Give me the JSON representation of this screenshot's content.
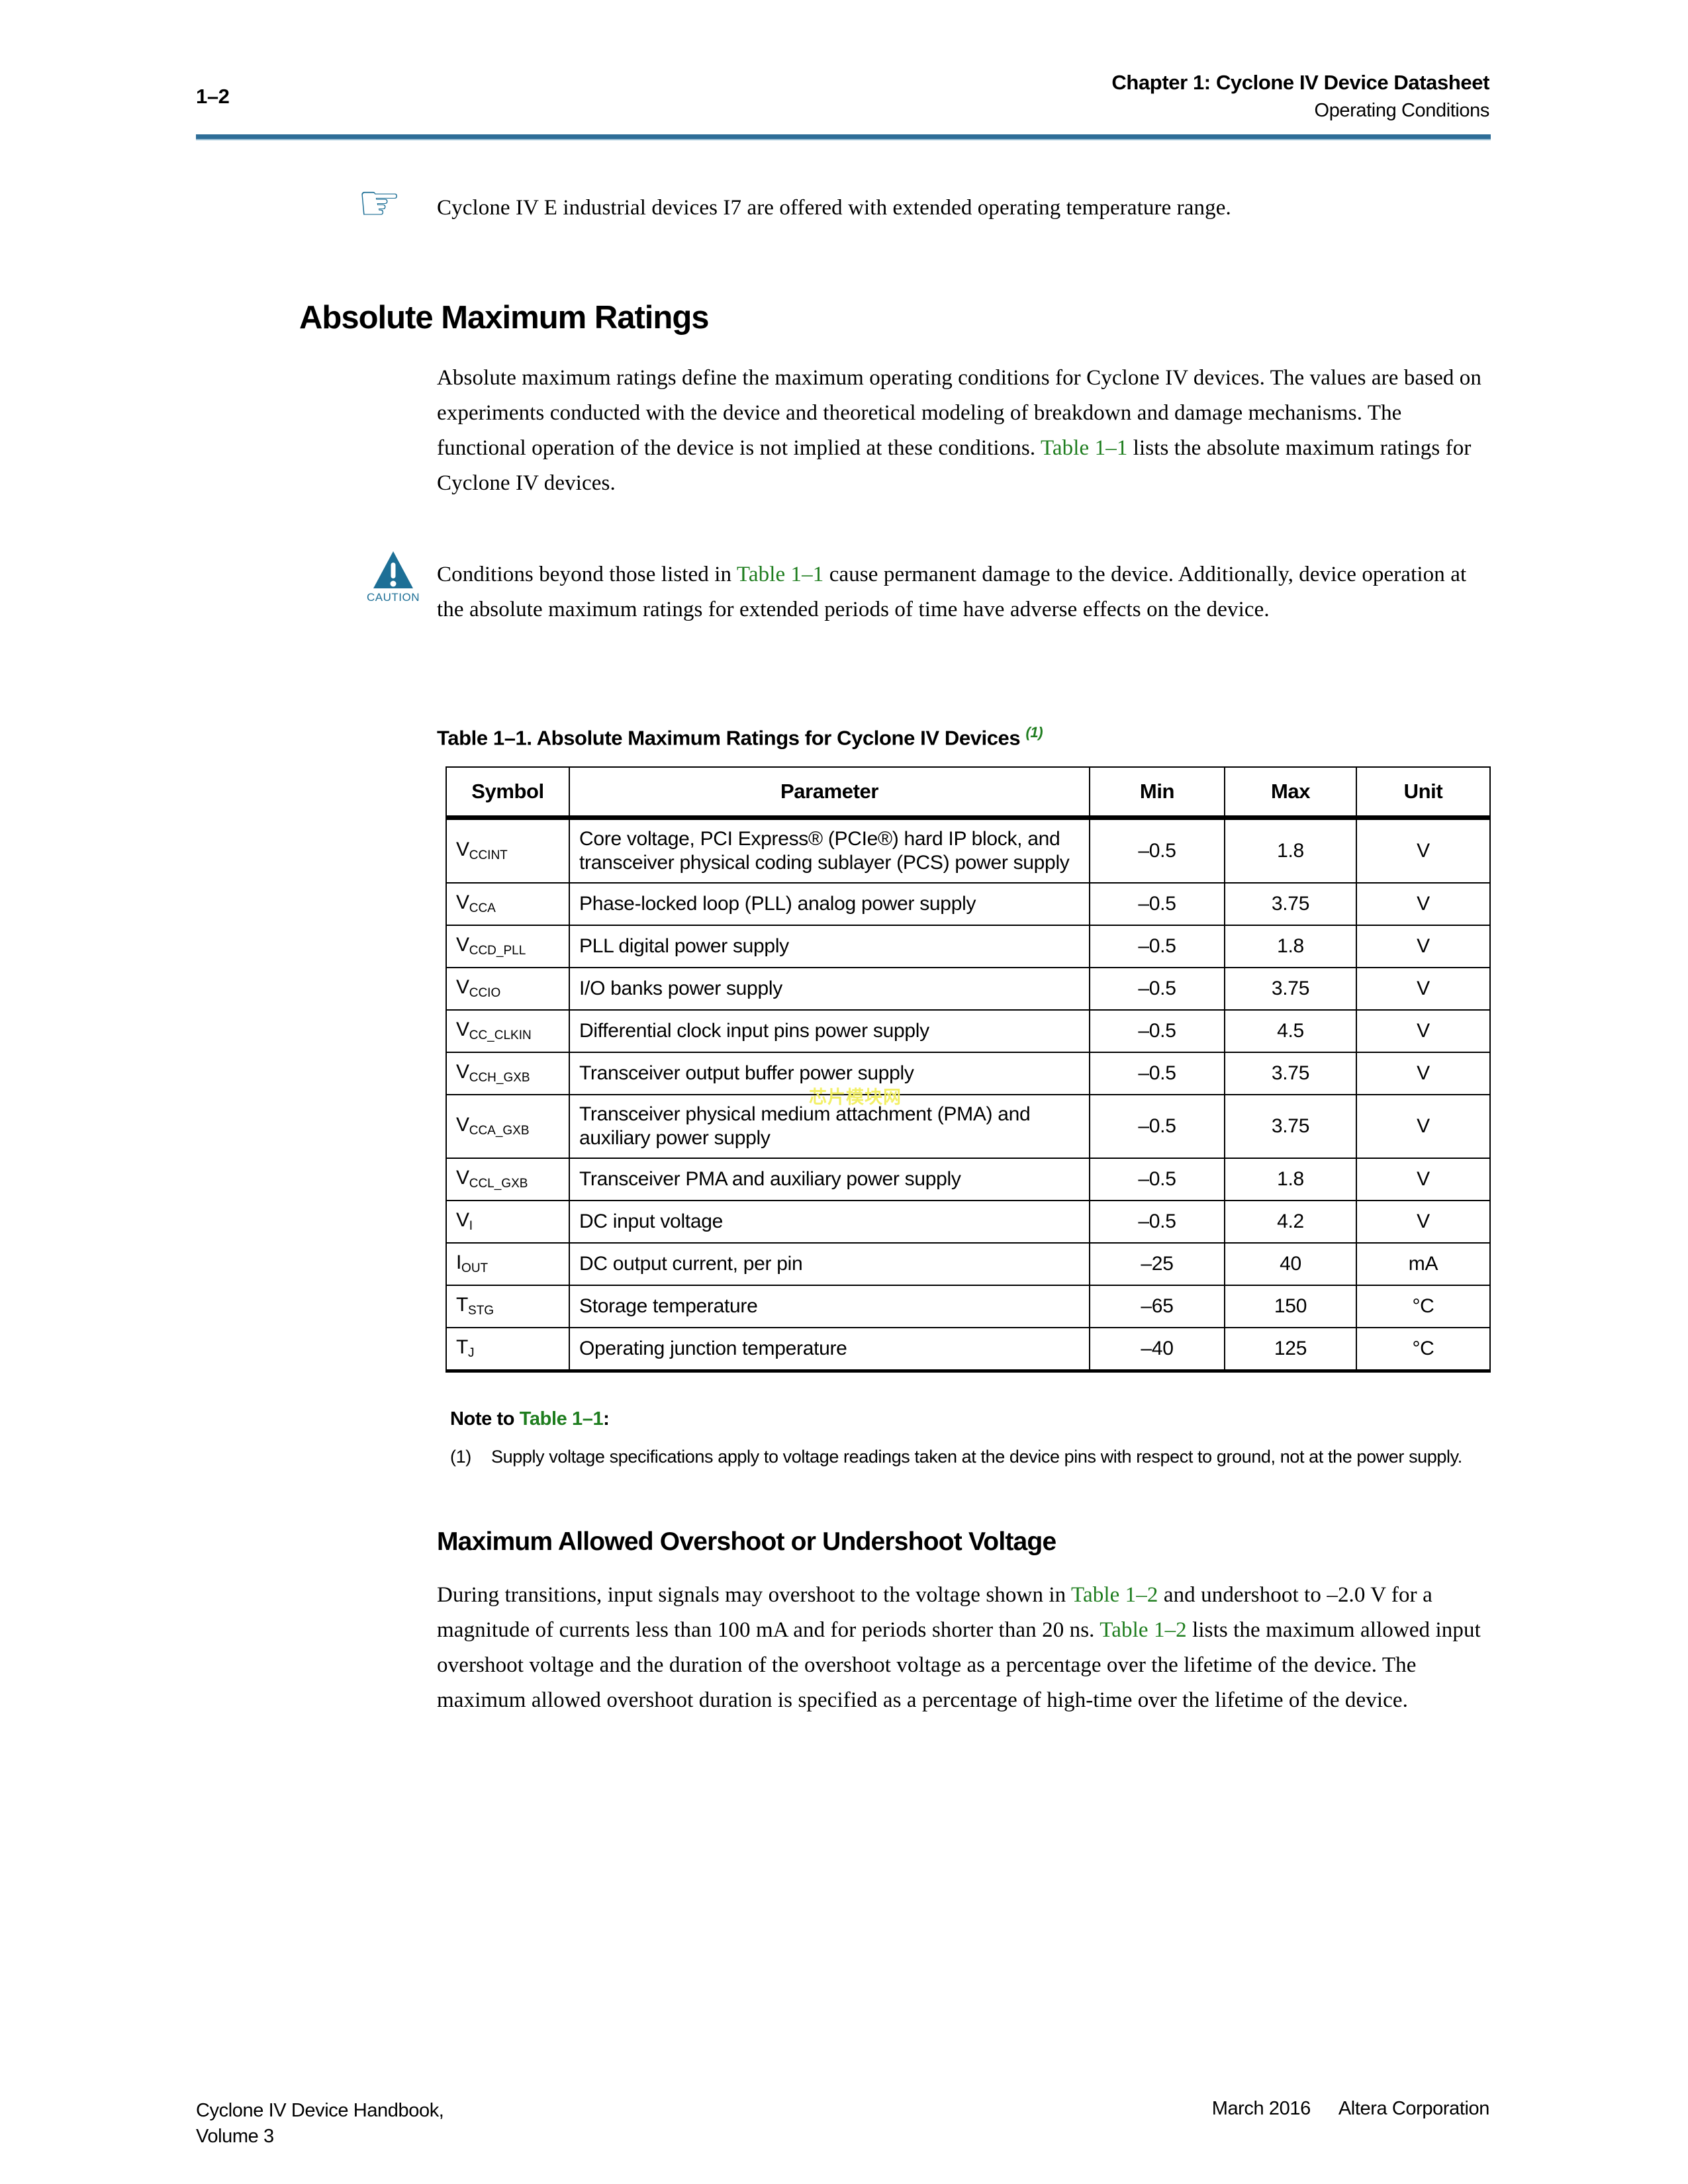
{
  "header": {
    "page_number": "1–2",
    "chapter_title": "Chapter 1:  Cyclone IV Device Datasheet",
    "section_title": "Operating Conditions"
  },
  "hand_note": [
    {
      "t": "Cyclone IV E industrial devices I7 are offered with extended operating temperature range."
    }
  ],
  "section1": {
    "title": "Absolute Maximum Ratings",
    "paragraph": [
      {
        "t": "Absolute maximum ratings define the maximum operating conditions for Cyclone IV devices. The values are based on experiments conducted with the device and theoretical modeling of breakdown and damage mechanisms. The functional operation of the device is not implied at these conditions. "
      },
      {
        "t": "Table 1–1",
        "c": "link"
      },
      {
        "t": " lists the absolute maximum ratings for Cyclone IV devices."
      }
    ]
  },
  "caution": {
    "label": "CAUTION",
    "text": [
      {
        "t": "Conditions beyond those listed in "
      },
      {
        "t": "Table 1–1",
        "c": "link"
      },
      {
        "t": " cause permanent damage to the device. Additionally, device operation at the absolute maximum ratings for extended periods of time have adverse effects on the device."
      }
    ]
  },
  "table": {
    "title": "Table 1–1.  Absolute Maximum Ratings for Cyclone IV Devices ",
    "title_footnote": "(1)",
    "columns": [
      "Symbol",
      "Parameter",
      "Min",
      "Max",
      "Unit"
    ],
    "rows": [
      {
        "symbol_base": "V",
        "symbol_sub": "CCINT",
        "parameter": "Core voltage, PCI Express® (PCIe®) hard IP block, and transceiver physical coding sublayer (PCS) power supply",
        "min": "–0.5",
        "max": "1.8",
        "unit": "V"
      },
      {
        "symbol_base": "V",
        "symbol_sub": "CCA",
        "parameter": "Phase-locked loop (PLL) analog power supply",
        "min": "–0.5",
        "max": "3.75",
        "unit": "V"
      },
      {
        "symbol_base": "V",
        "symbol_sub": "CCD_PLL",
        "parameter": "PLL digital power supply",
        "min": "–0.5",
        "max": "1.8",
        "unit": "V"
      },
      {
        "symbol_base": "V",
        "symbol_sub": "CCIO",
        "parameter": "I/O banks power supply",
        "min": "–0.5",
        "max": "3.75",
        "unit": "V"
      },
      {
        "symbol_base": "V",
        "symbol_sub": "CC_CLKIN",
        "parameter": "Differential clock input pins power supply",
        "min": "–0.5",
        "max": "4.5",
        "unit": "V"
      },
      {
        "symbol_base": "V",
        "symbol_sub": "CCH_GXB",
        "parameter": "Transceiver output buffer power supply",
        "min": "–0.5",
        "max": "3.75",
        "unit": "V"
      },
      {
        "symbol_base": "V",
        "symbol_sub": "CCA_GXB",
        "parameter": "Transceiver physical medium attachment (PMA) and auxiliary power supply",
        "min": "–0.5",
        "max": "3.75",
        "unit": "V"
      },
      {
        "symbol_base": "V",
        "symbol_sub": "CCL_GXB",
        "parameter": "Transceiver PMA and auxiliary power supply",
        "min": "–0.5",
        "max": "1.8",
        "unit": "V"
      },
      {
        "symbol_base": "V",
        "symbol_sub": "I",
        "parameter": "DC input voltage",
        "min": "–0.5",
        "max": "4.2",
        "unit": "V"
      },
      {
        "symbol_base": "I",
        "symbol_sub": "OUT",
        "parameter": "DC output current, per pin",
        "min": "–25",
        "max": "40",
        "unit": "mA"
      },
      {
        "symbol_base": "T",
        "symbol_sub": "STG",
        "parameter": "Storage temperature",
        "min": "–65",
        "max": "150",
        "unit": "°C"
      },
      {
        "symbol_base": "T",
        "symbol_sub": "J",
        "parameter": "Operating junction temperature",
        "min": "–40",
        "max": "125",
        "unit": "°C"
      }
    ],
    "note_heading": [
      {
        "t": "Note to "
      },
      {
        "t": "Table 1–1",
        "c": "link"
      },
      {
        "t": ":"
      }
    ],
    "footnote_number": "(1)",
    "footnote_text": "Supply voltage specifications apply to voltage readings taken at the device pins with respect to ground, not at the power supply."
  },
  "section2": {
    "title": "Maximum Allowed Overshoot or Undershoot Voltage",
    "paragraph": [
      {
        "t": "During transitions, input signals may overshoot to the voltage shown in "
      },
      {
        "t": "Table 1–2",
        "c": "link"
      },
      {
        "t": " and undershoot to –2.0 V for a magnitude of currents less than 100 mA and for periods shorter than 20 ns. "
      },
      {
        "t": "Table 1–2",
        "c": "link"
      },
      {
        "t": " lists the maximum allowed input overshoot voltage and the duration of the overshoot voltage as a percentage over the lifetime of the device. The maximum allowed overshoot duration is specified as a percentage of high-time over the lifetime of the device."
      }
    ]
  },
  "watermark": "芯片模块网",
  "footer": {
    "handbook_line1": "Cyclone IV Device Handbook,",
    "handbook_line2": "Volume 3",
    "date": "March 2016",
    "company": "Altera Corporation"
  },
  "icons": {
    "hand_note_icon": "pointing-hand-note",
    "caution_icon": "caution-triangle"
  },
  "colors": {
    "link_green": "#1e7d1e",
    "rule_blue": "#2e6d97",
    "icon_blue": "#1d6f96",
    "watermark_yellow": "#f2ef5e"
  }
}
